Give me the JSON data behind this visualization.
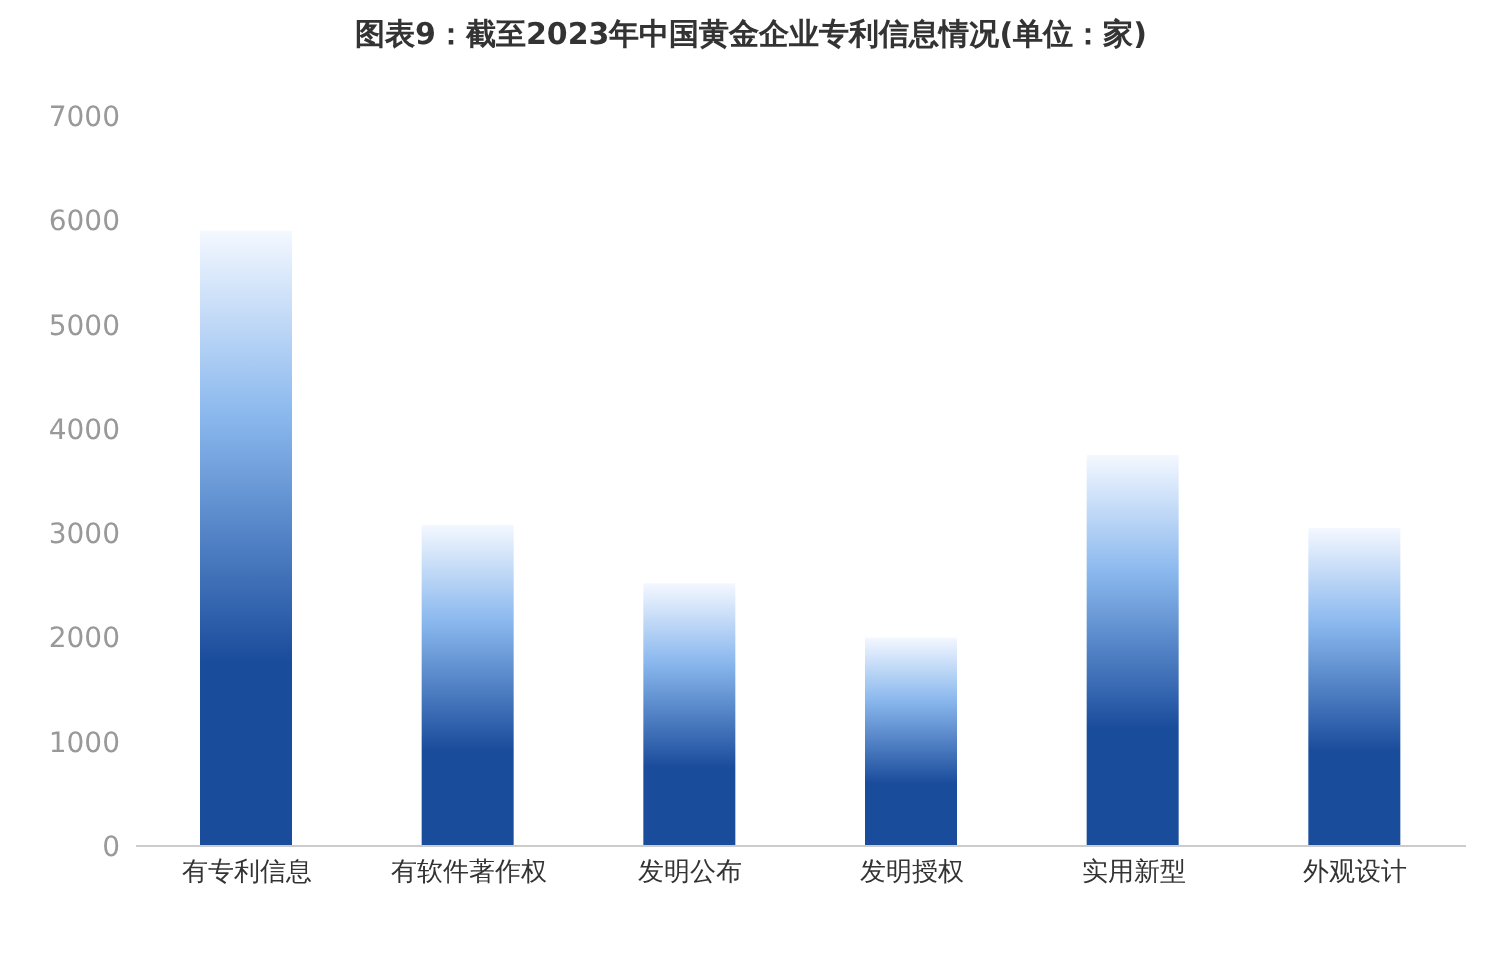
{
  "chart_data": {
    "type": "bar",
    "title": "图表9：截至2023年中国黄金企业专利信息情况(单位：家)",
    "categories": [
      "有专利信息",
      "有软件著作权",
      "发明公布",
      "发明授权",
      "实用新型",
      "外观设计"
    ],
    "values": [
      5900,
      3080,
      2520,
      2000,
      3750,
      3050
    ],
    "color": "#1a4c9c",
    "ylim": [
      0,
      7000
    ],
    "yticks": [
      0,
      1000,
      2000,
      3000,
      4000,
      5000,
      6000,
      7000
    ],
    "grid": false
  }
}
